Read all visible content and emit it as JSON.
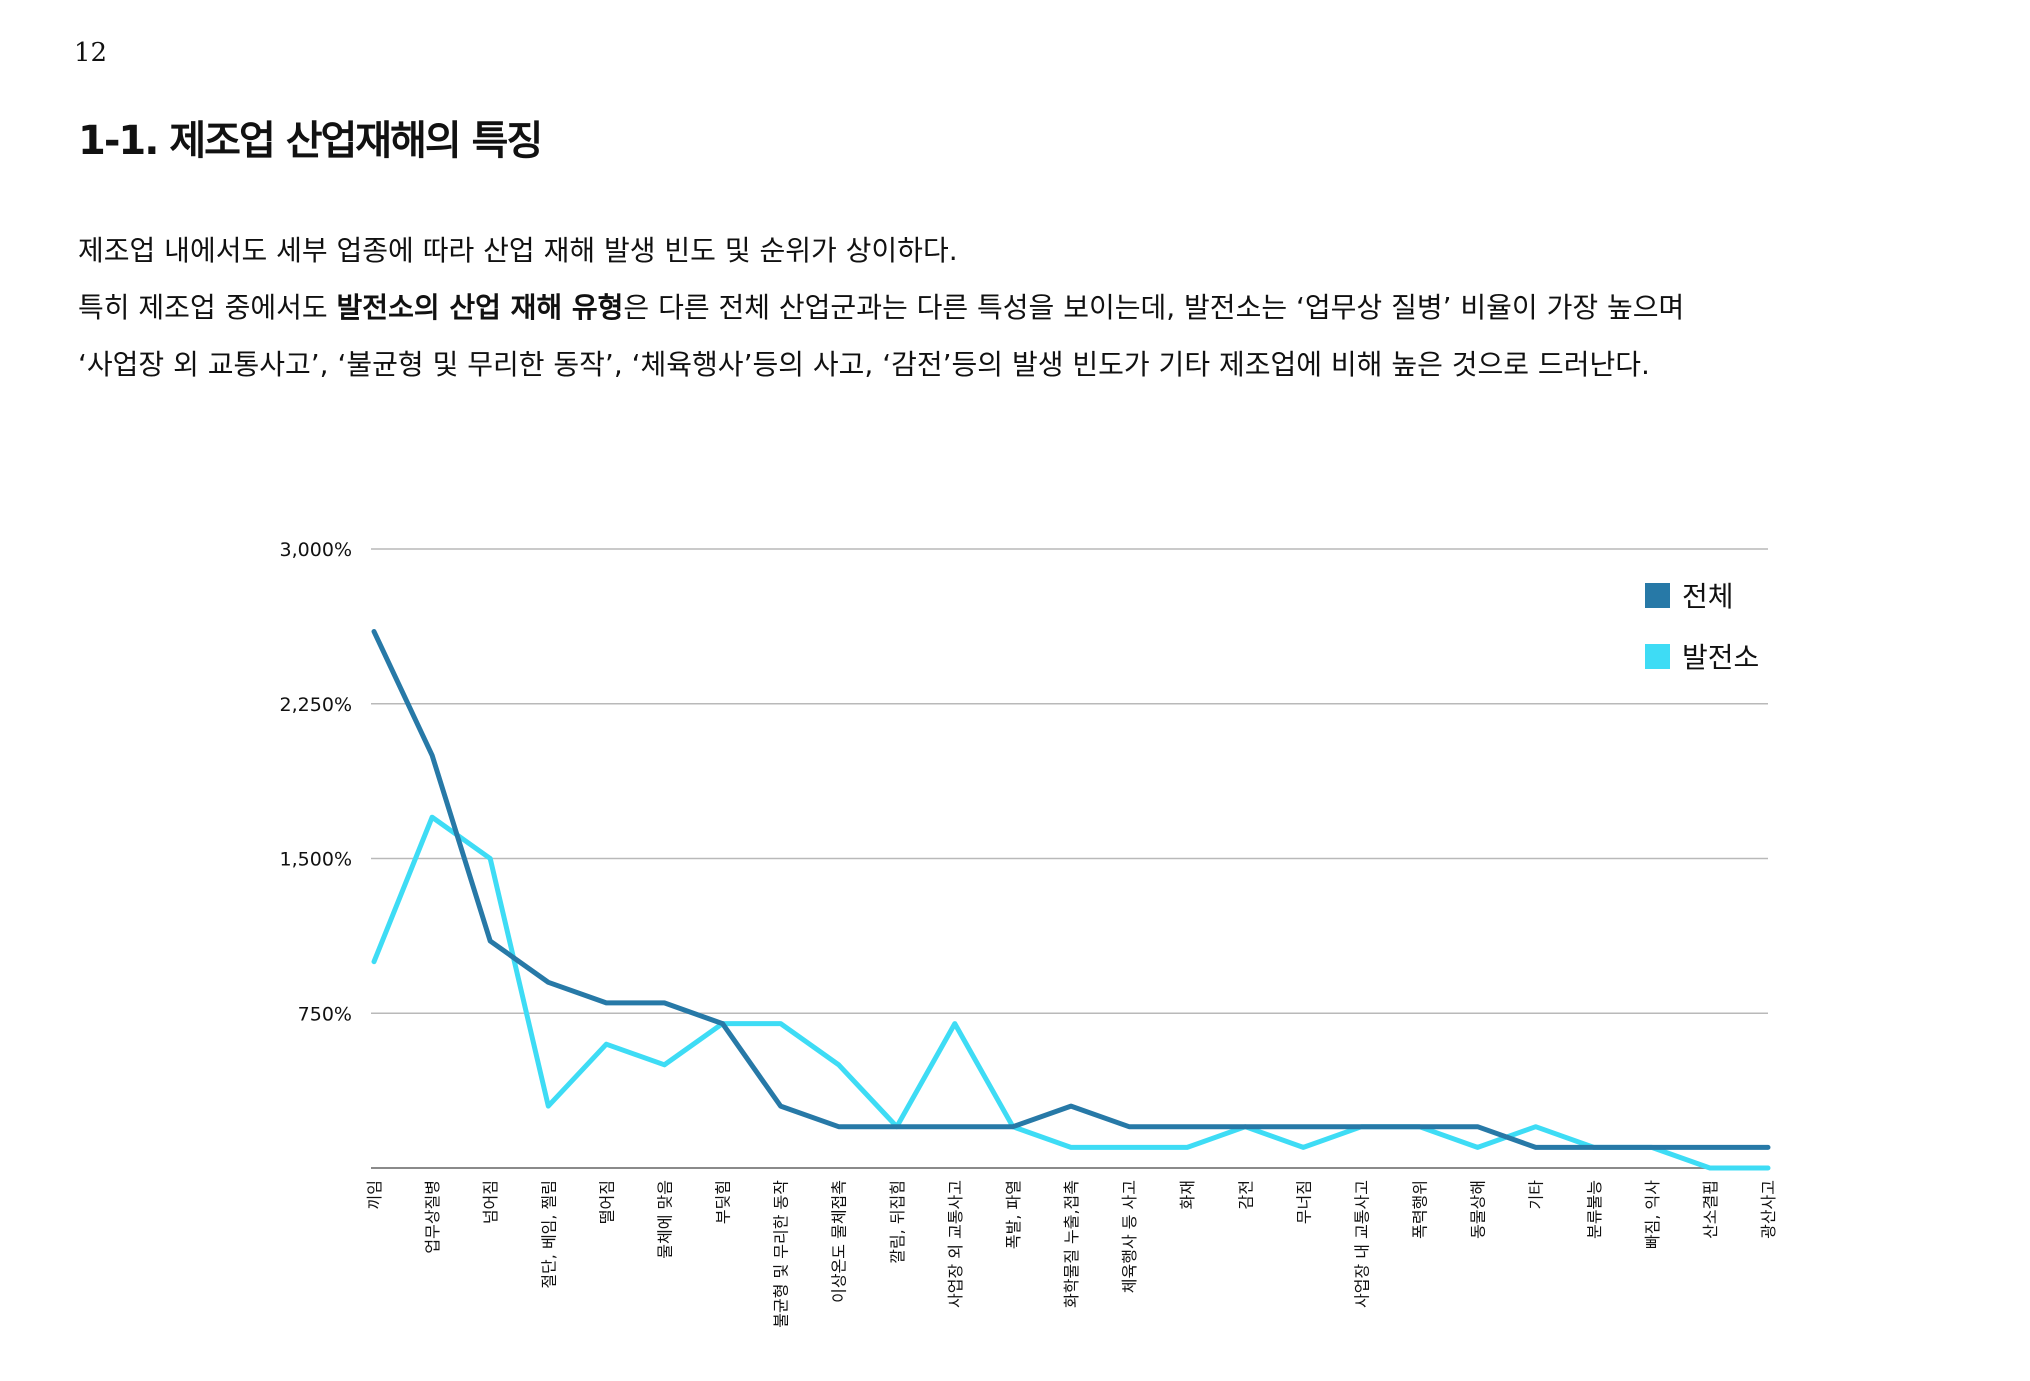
{
  "page_number": "12",
  "section_title": "1-1. 제조업 산업재해의 특징",
  "body": {
    "line1": "제조업 내에서도 세부 업종에 따라 산업 재해 발생 빈도 및 순위가 상이하다.",
    "line2_pre": "특히 제조업 중에서도 ",
    "line2_bold": "발전소의 산업 재해 유형",
    "line2_post": "은 다른 전체 산업군과는 다른 특성을 보이는데, 발전소는 ‘업무상 질병’ 비율이 가장 높으며",
    "line3": "‘사업장 외 교통사고’, ‘불균형 및 무리한 동작’, ‘체육행사’등의 사고, ‘감전’등의 발생 빈도가 기타 제조업에 비해 높은 것으로 드러난다."
  },
  "chart_data": {
    "type": "line",
    "title": "",
    "xlabel": "",
    "ylabel": "",
    "ylim": [
      0,
      3000
    ],
    "yticks": [
      0,
      750,
      1500,
      2250,
      3000
    ],
    "ytick_labels": [
      "",
      "750%",
      "1,500%",
      "2,250%",
      "3,000%"
    ],
    "grid": true,
    "legend_position": "top-right",
    "categories": [
      "끼임",
      "업무상질병",
      "넘어짐",
      "절단, 베임, 찔림",
      "떨어짐",
      "물체에 맞음",
      "부딪힘",
      "불균형 및 무리한 동작",
      "이상온도 물체접촉",
      "깔림, 뒤집힘",
      "사업장 외 교통사고",
      "폭발, 파열",
      "화학물질 누출,접촉",
      "체육행사 등 사고",
      "화재",
      "감전",
      "무너짐",
      "사업장 내 교통사고",
      "폭력행위",
      "동물상해",
      "기타",
      "분류불능",
      "빠짐, 익사",
      "산소결핍",
      "광산사고"
    ],
    "series": [
      {
        "name": "전체",
        "color": "#2779a7",
        "values": [
          2600,
          2000,
          1100,
          900,
          800,
          800,
          700,
          300,
          200,
          200,
          200,
          200,
          300,
          200,
          200,
          200,
          200,
          200,
          200,
          200,
          100,
          100,
          100,
          100,
          100
        ]
      },
      {
        "name": "발전소",
        "color": "#3edcf5",
        "values": [
          1000,
          1700,
          1500,
          300,
          600,
          500,
          700,
          700,
          500,
          200,
          700,
          200,
          100,
          100,
          100,
          200,
          100,
          200,
          200,
          100,
          200,
          100,
          100,
          0,
          0
        ]
      }
    ]
  }
}
